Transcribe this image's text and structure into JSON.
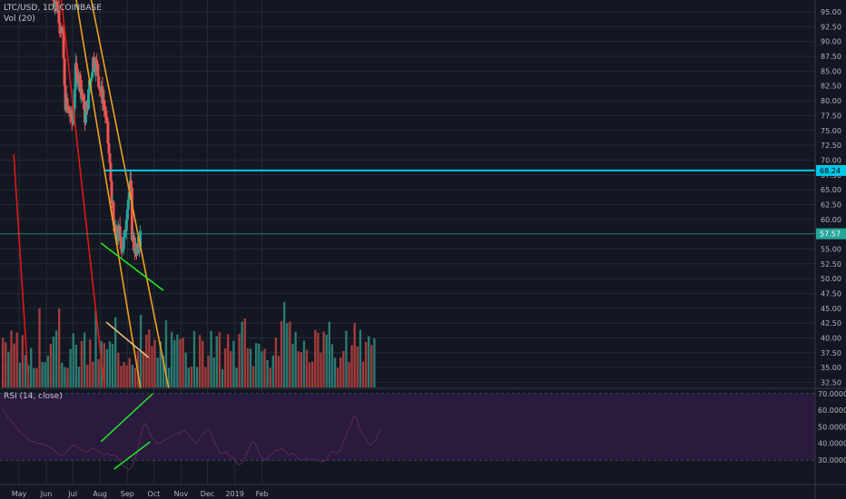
{
  "header": {
    "symbol_line": "LTC/USD, 1D, COINBASE",
    "volume_label": "Vol (20)",
    "rsi_label": "RSI (14, close)"
  },
  "price_badges": {
    "cyan_level": "68.24",
    "last_price": "57.57"
  },
  "colors": {
    "background": "#131722",
    "grid": "#252a35",
    "up": "#26a69a",
    "down": "#ef5350",
    "up_volume": "#2a7a71",
    "down_volume": "#a23b3b",
    "cyan_line": "#00c8e6",
    "red_trend": "#e01818",
    "orange_channel": "#f0a020",
    "green_trend": "#22e022",
    "rsi_band": "#2a1a3e",
    "rsi_line": "#5a2a5a"
  },
  "chart_data": [
    {
      "type": "candlestick",
      "title": "LTC/USD, 1D, COINBASE",
      "y_axis": {
        "ticks": [
          "95.00",
          "92.50",
          "90.00",
          "87.50",
          "85.00",
          "82.50",
          "80.00",
          "77.50",
          "75.00",
          "72.50",
          "70.00",
          "67.50",
          "65.00",
          "62.50",
          "60.00",
          "57.50",
          "55.00",
          "52.50",
          "50.00",
          "47.50",
          "45.00",
          "42.50",
          "40.00",
          "37.50",
          "35.00",
          "32.50"
        ],
        "range": [
          31.5,
          97.0
        ]
      },
      "x_axis": {
        "ticks": [
          "May",
          "Jun",
          "Jul",
          "Aug",
          "Sep",
          "Oct",
          "Nov",
          "Dec",
          "2019",
          "Feb"
        ]
      },
      "horizontal_levels": [
        {
          "name": "resistance",
          "value": 68.24,
          "color": "#00c8e6"
        },
        {
          "name": "last",
          "value": 57.57,
          "color": "#26a69a"
        }
      ],
      "trendlines": [
        {
          "color": "#e01818",
          "from": {
            "date": "2018-04-25",
            "price": 71.0
          },
          "to": {
            "date": "2018-05-12",
            "price": 31.5
          }
        },
        {
          "color": "#e01818",
          "from": {
            "date": "2018-06-18",
            "price": 97.0
          },
          "to": {
            "date": "2018-08-06",
            "price": 31.5
          }
        },
        {
          "color": "#f0a020",
          "from": {
            "date": "2018-07-05",
            "price": 97.0
          },
          "to": {
            "date": "2018-09-16",
            "price": 31.5
          }
        },
        {
          "color": "#f0a020",
          "from": {
            "date": "2018-07-22",
            "price": 97.0
          },
          "to": {
            "date": "2018-10-18",
            "price": 31.5
          }
        },
        {
          "color": "#22e022",
          "from": {
            "date": "2018-08-02",
            "price": 56.0
          },
          "to": {
            "date": "2018-10-12",
            "price": 48.0
          }
        }
      ]
    },
    {
      "type": "bar",
      "title": "Vol (20)",
      "overlay_line": {
        "color": "#f5c07a",
        "from": {
          "date": "2018-08-08"
        },
        "to": {
          "date": "2018-09-25"
        }
      }
    },
    {
      "type": "line",
      "title": "RSI (14, close)",
      "y_axis": {
        "ticks": [
          "70.0000",
          "60.0000",
          "50.0000",
          "40.0000",
          "30.0000"
        ],
        "range": [
          24.5,
          71.0
        ]
      },
      "band": [
        30,
        70
      ],
      "trendlines": [
        {
          "color": "#22e022",
          "from": {
            "date": "2018-08-02",
            "value": 41.0
          },
          "to": {
            "date": "2018-09-30",
            "value": 70.0
          }
        },
        {
          "color": "#22e022",
          "from": {
            "date": "2018-08-17",
            "value": 24.5
          },
          "to": {
            "date": "2018-09-27",
            "value": 41.0
          }
        }
      ],
      "values": [
        61,
        59,
        56,
        54,
        52,
        50,
        48,
        46,
        45,
        44,
        42,
        41,
        41,
        40,
        40,
        39,
        39,
        38,
        37,
        36,
        34,
        33,
        33,
        34,
        36,
        38,
        39,
        38,
        37,
        36,
        35,
        35,
        36,
        37,
        36,
        35,
        34,
        33,
        34,
        33,
        33,
        33,
        31,
        28,
        26,
        25,
        24,
        26,
        30,
        36,
        44,
        50,
        52,
        48,
        44,
        42,
        40,
        40,
        41,
        42,
        43,
        44,
        45,
        46,
        46,
        47,
        48,
        46,
        44,
        42,
        40,
        42,
        44,
        46,
        48,
        48,
        44,
        40,
        37,
        34,
        34,
        35,
        33,
        32,
        31,
        28,
        27,
        29,
        32,
        36,
        40,
        41,
        38,
        34,
        31,
        30,
        31,
        33,
        34,
        36,
        36,
        37,
        36,
        34,
        33,
        34,
        33,
        31,
        30,
        30,
        31,
        30,
        30,
        30,
        30,
        29,
        29,
        30,
        32,
        35,
        35,
        34,
        35,
        39,
        43,
        48,
        50,
        56,
        56,
        50,
        46,
        44,
        41,
        39,
        40,
        42,
        46,
        48
      ]
    }
  ]
}
